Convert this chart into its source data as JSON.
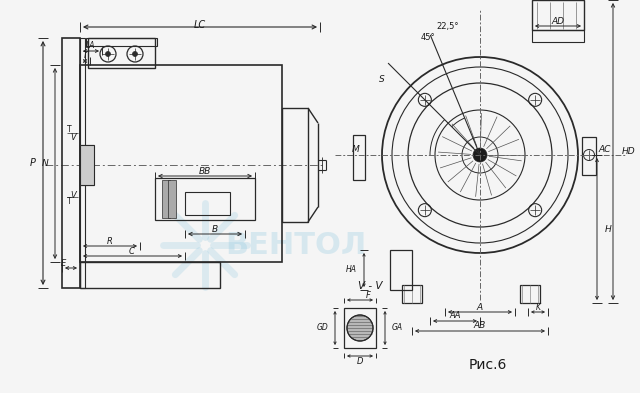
{
  "bg_color": "#f5f5f5",
  "line_color": "#2a2a2a",
  "dim_color": "#2a2a2a",
  "watermark_color": "#90c8e0",
  "watermark_text": "ВЕНТОЛ",
  "caption": "Рис.6",
  "section_label": "V - V",
  "fig_width": 6.4,
  "fig_height": 3.93
}
